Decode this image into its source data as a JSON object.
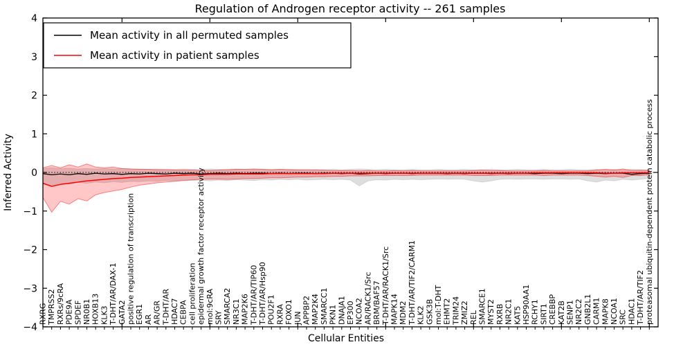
{
  "figure": {
    "background": "#ffffff"
  },
  "chart_data": {
    "type": "line",
    "title": "Regulation of Androgen receptor activity -- 261 samples",
    "xlabel": "Cellular Entities",
    "ylabel": "Inferred Activity",
    "sample_count": 261,
    "ylim": [
      -4,
      4
    ],
    "xlim": [
      1,
      71
    ],
    "yticks": [
      -4,
      -3,
      -2,
      -1,
      0,
      1,
      2,
      3,
      4
    ],
    "x_major_tick_every": 10,
    "grid": false,
    "legend_position": "upper left",
    "zero_line": {
      "style": "dotted",
      "color": "#000000",
      "value": 0
    },
    "categories": [
      "RXRG",
      "TMPRSS2",
      "RXRs/9cRA",
      "PDE9A",
      "SPDEF",
      "NR0B1",
      "HOXB13",
      "KLK3",
      "T-DHT/AR/DAX-1",
      "GATA2",
      "positive regulation of transcription",
      "EGR1",
      "AR",
      "AR/GR",
      "T-DHT/AR",
      "HDAC7",
      "CEBPA",
      "cell proliferation",
      "epidermal growth factor receptor activity",
      "mol:9cRA",
      "SRY",
      "SMARCA2",
      "NR3C1",
      "MAP2K6",
      "T-DHT/AR/TIP60",
      "T-DHT/AR/Hsp90",
      "POU2F1",
      "RXRA",
      "FOXO1",
      "JUN",
      "APPBP2",
      "MAP2K4",
      "SMARCC1",
      "PKN1",
      "DNAJA1",
      "EP300",
      "NCOA2",
      "AR/RACK1/Src",
      "BRM/BAF57",
      "T-DHT/AR/RACK1/Src",
      "MAPK14",
      "MDM2",
      "T-DHT/AR/TIF2/CARM1",
      "KLK2",
      "GSK3B",
      "mol:T-DHT",
      "EHMT2",
      "TRIM24",
      "ZMIZ2",
      "REL",
      "SMARCE1",
      "MYST2",
      "RXRB",
      "NR2C1",
      "KAT5",
      "HSP90AA1",
      "RCHY1",
      "SIRT1",
      "CREBBP",
      "KAT2B",
      "SENP1",
      "NR2C2",
      "GNB2L1",
      "CARM1",
      "MAPK8",
      "NCOA1",
      "SRC",
      "HDAC1",
      "T-DHT/AR/TIF2",
      "proteasomal ubiquitin-dependent protein catabolic process"
    ],
    "series": [
      {
        "name": "Mean activity in all permuted samples",
        "color": "#000000",
        "band_fill": "rgba(0,0,0,0.13)",
        "band_edge": "rgba(0,0,0,0.10)",
        "values": [
          -0.03,
          -0.06,
          -0.04,
          -0.06,
          -0.03,
          -0.05,
          -0.02,
          -0.04,
          -0.03,
          -0.05,
          -0.03,
          -0.04,
          -0.02,
          -0.03,
          -0.04,
          -0.02,
          -0.03,
          -0.02,
          -0.04,
          -0.03,
          -0.02,
          -0.03,
          -0.02,
          -0.03,
          -0.02,
          -0.02,
          -0.03,
          -0.02,
          -0.03,
          -0.02,
          -0.02,
          -0.03,
          -0.02,
          -0.02,
          -0.03,
          -0.02,
          -0.04,
          -0.03,
          -0.02,
          -0.03,
          -0.02,
          -0.02,
          -0.03,
          -0.02,
          -0.02,
          -0.02,
          -0.03,
          -0.02,
          -0.03,
          -0.02,
          -0.02,
          -0.03,
          -0.02,
          -0.03,
          -0.02,
          -0.02,
          -0.03,
          -0.02,
          -0.02,
          -0.03,
          -0.02,
          -0.02,
          -0.03,
          -0.02,
          -0.03,
          -0.02,
          -0.02,
          -0.05,
          -0.03,
          -0.02
        ],
        "band_upper": [
          0.1,
          0.12,
          0.1,
          0.11,
          0.09,
          0.1,
          0.09,
          0.1,
          0.09,
          0.1,
          0.09,
          0.09,
          0.08,
          0.09,
          0.08,
          0.08,
          0.09,
          0.08,
          0.08,
          0.09,
          0.08,
          0.08,
          0.09,
          0.08,
          0.08,
          0.08,
          0.08,
          0.08,
          0.08,
          0.08,
          0.07,
          0.08,
          0.07,
          0.08,
          0.07,
          0.08,
          0.09,
          0.08,
          0.07,
          0.08,
          0.07,
          0.07,
          0.08,
          0.07,
          0.07,
          0.08,
          0.07,
          0.07,
          0.08,
          0.07,
          0.07,
          0.08,
          0.07,
          0.07,
          0.08,
          0.07,
          0.07,
          0.08,
          0.07,
          0.07,
          0.08,
          0.07,
          0.07,
          0.08,
          0.07,
          0.08,
          0.07,
          0.08,
          0.07,
          0.07
        ],
        "band_lower": [
          -0.3,
          -0.33,
          -0.28,
          -0.3,
          -0.26,
          -0.28,
          -0.25,
          -0.27,
          -0.24,
          -0.26,
          -0.23,
          -0.24,
          -0.22,
          -0.23,
          -0.21,
          -0.22,
          -0.2,
          -0.21,
          -0.2,
          -0.22,
          -0.2,
          -0.21,
          -0.19,
          -0.2,
          -0.21,
          -0.19,
          -0.2,
          -0.18,
          -0.19,
          -0.18,
          -0.2,
          -0.19,
          -0.18,
          -0.19,
          -0.18,
          -0.2,
          -0.35,
          -0.22,
          -0.19,
          -0.2,
          -0.18,
          -0.19,
          -0.18,
          -0.19,
          -0.18,
          -0.17,
          -0.18,
          -0.17,
          -0.18,
          -0.22,
          -0.25,
          -0.22,
          -0.18,
          -0.17,
          -0.18,
          -0.17,
          -0.17,
          -0.18,
          -0.17,
          -0.17,
          -0.18,
          -0.17,
          -0.22,
          -0.25,
          -0.2,
          -0.22,
          -0.18,
          -0.2,
          -0.18,
          -0.15
        ]
      },
      {
        "name": "Mean activity in patient samples",
        "color": "#ff0000",
        "band_fill": "rgba(255,0,0,0.22)",
        "band_edge": "rgba(255,0,0,0.45)",
        "values": [
          -0.28,
          -0.36,
          -0.31,
          -0.28,
          -0.25,
          -0.22,
          -0.2,
          -0.18,
          -0.16,
          -0.15,
          -0.13,
          -0.12,
          -0.11,
          -0.1,
          -0.09,
          -0.08,
          -0.07,
          -0.06,
          -0.06,
          -0.05,
          -0.05,
          -0.05,
          -0.04,
          -0.04,
          -0.04,
          -0.04,
          -0.03,
          -0.03,
          -0.03,
          -0.03,
          -0.03,
          -0.03,
          -0.03,
          -0.02,
          -0.02,
          -0.02,
          -0.02,
          -0.02,
          -0.02,
          -0.02,
          -0.02,
          -0.02,
          -0.02,
          -0.02,
          -0.02,
          -0.02,
          -0.02,
          -0.02,
          -0.02,
          -0.02,
          -0.02,
          -0.02,
          -0.02,
          -0.02,
          -0.02,
          -0.02,
          -0.01,
          -0.01,
          -0.01,
          -0.01,
          -0.01,
          -0.01,
          -0.01,
          -0.01,
          -0.02,
          -0.02,
          -0.01,
          -0.01,
          -0.01,
          -0.01
        ],
        "band_upper": [
          0.12,
          0.18,
          0.12,
          0.2,
          0.14,
          0.22,
          0.14,
          0.12,
          0.14,
          0.1,
          0.09,
          0.08,
          0.08,
          0.07,
          0.07,
          0.06,
          0.06,
          0.06,
          0.05,
          0.05,
          0.06,
          0.07,
          0.08,
          0.08,
          0.09,
          0.08,
          0.07,
          0.08,
          0.07,
          0.06,
          0.07,
          0.06,
          0.06,
          0.05,
          0.05,
          0.05,
          0.04,
          0.05,
          0.04,
          0.04,
          0.05,
          0.04,
          0.05,
          0.04,
          0.04,
          0.04,
          0.04,
          0.04,
          0.04,
          0.05,
          0.06,
          0.05,
          0.05,
          0.04,
          0.04,
          0.04,
          0.04,
          0.05,
          0.04,
          0.04,
          0.04,
          0.04,
          0.04,
          0.06,
          0.08,
          0.06,
          0.09,
          0.05,
          0.06,
          0.05
        ],
        "band_lower": [
          -0.65,
          -1.03,
          -0.75,
          -0.82,
          -0.68,
          -0.74,
          -0.58,
          -0.52,
          -0.48,
          -0.44,
          -0.38,
          -0.33,
          -0.3,
          -0.27,
          -0.25,
          -0.23,
          -0.21,
          -0.19,
          -0.18,
          -0.17,
          -0.17,
          -0.18,
          -0.17,
          -0.16,
          -0.16,
          -0.15,
          -0.14,
          -0.14,
          -0.13,
          -0.12,
          -0.12,
          -0.11,
          -0.11,
          -0.1,
          -0.1,
          -0.09,
          -0.09,
          -0.09,
          -0.08,
          -0.08,
          -0.08,
          -0.08,
          -0.08,
          -0.07,
          -0.07,
          -0.07,
          -0.07,
          -0.07,
          -0.07,
          -0.08,
          -0.08,
          -0.08,
          -0.07,
          -0.07,
          -0.07,
          -0.07,
          -0.07,
          -0.08,
          -0.07,
          -0.07,
          -0.07,
          -0.07,
          -0.08,
          -0.1,
          -0.12,
          -0.1,
          -0.13,
          -0.08,
          -0.08,
          -0.06
        ]
      }
    ]
  }
}
